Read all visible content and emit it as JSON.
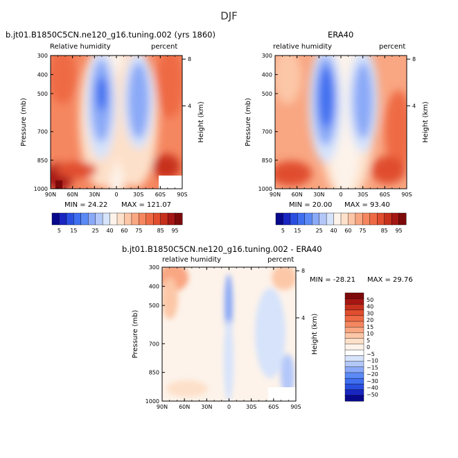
{
  "figure": {
    "season": "DJF",
    "colors": {
      "palette": [
        "#08088c",
        "#1a26c2",
        "#2a4fe0",
        "#3f6ff0",
        "#5b8af5",
        "#8aa9f7",
        "#b3c8f9",
        "#d6e3fb",
        "#fdf3ea",
        "#fde0c9",
        "#fcc7a7",
        "#f9a682",
        "#f58760",
        "#ee6a45",
        "#e04d2f",
        "#c7301d",
        "#a51714",
        "#7d0a0a"
      ],
      "diff_low": [
        "#08088c",
        "#1a26c2",
        "#2a4fe0",
        "#3f6ff0",
        "#5b8af5",
        "#8aa9f7",
        "#b3c8f9",
        "#d6e3fb"
      ],
      "diff_mid": "#ffffff",
      "diff_high": [
        "#fdf3ea",
        "#fde0c9",
        "#fcc7a7",
        "#f9a682",
        "#f58760",
        "#ee6a45",
        "#e04d2f",
        "#c7301d",
        "#a51714",
        "#7d0a0a"
      ]
    }
  },
  "chart_data": [
    {
      "type": "heatmap",
      "title": "b.jt01.B1850C5CN.ne120_g16.tuning.002 (yrs 1860)",
      "left_label": "Relative humidity",
      "right_label": "percent",
      "ylabel": "Pressure (mb)",
      "y2label": "Height (km)",
      "x_ticks": [
        "90N",
        "60N",
        "30N",
        "0",
        "30S",
        "60S",
        "90S"
      ],
      "y_ticks": [
        "300",
        "400",
        "500",
        "700",
        "850",
        "1000"
      ],
      "y2_ticks": [
        "8",
        "4"
      ],
      "min_label": "MIN =  24.22",
      "max_label": "MAX = 121.07",
      "colorbar_labels": [
        "5",
        "15",
        "25",
        "40",
        "60",
        "75",
        "85",
        "95"
      ]
    },
    {
      "type": "heatmap",
      "title": "ERA40",
      "left_label": "relative humidity",
      "right_label": "percent",
      "ylabel": "Pressure (mb)",
      "y2label": "Height (km)",
      "x_ticks": [
        "90N",
        "60N",
        "30N",
        "0",
        "30S",
        "60S",
        "90S"
      ],
      "y_ticks": [
        "300",
        "400",
        "500",
        "700",
        "850",
        "1000"
      ],
      "y2_ticks": [
        "8",
        "4"
      ],
      "min_label": "MIN =  20.00",
      "max_label": "MAX =  93.40",
      "colorbar_labels": [
        "5",
        "15",
        "25",
        "40",
        "60",
        "75",
        "85",
        "95"
      ]
    },
    {
      "type": "heatmap",
      "title": "b.jt01.B1850C5CN.ne120_g16.tuning.002 - ERA40",
      "left_label": "relative humidity",
      "right_label": "percent",
      "ylabel": "Pressure (mb)",
      "y2label": "Height (km)",
      "x_ticks": [
        "90N",
        "60N",
        "30N",
        "0",
        "30S",
        "60S",
        "90S"
      ],
      "y_ticks": [
        "300",
        "400",
        "500",
        "700",
        "850",
        "1000"
      ],
      "y2_ticks": [
        "8",
        "4"
      ],
      "min_label": "MIN = -28.21",
      "max_label": "MAX =  29.76",
      "colorbar_labels": [
        "50",
        "40",
        "30",
        "20",
        "15",
        "10",
        "5",
        "0",
        "−5",
        "−10",
        "−15",
        "−20",
        "−30",
        "−40",
        "−50"
      ]
    }
  ]
}
